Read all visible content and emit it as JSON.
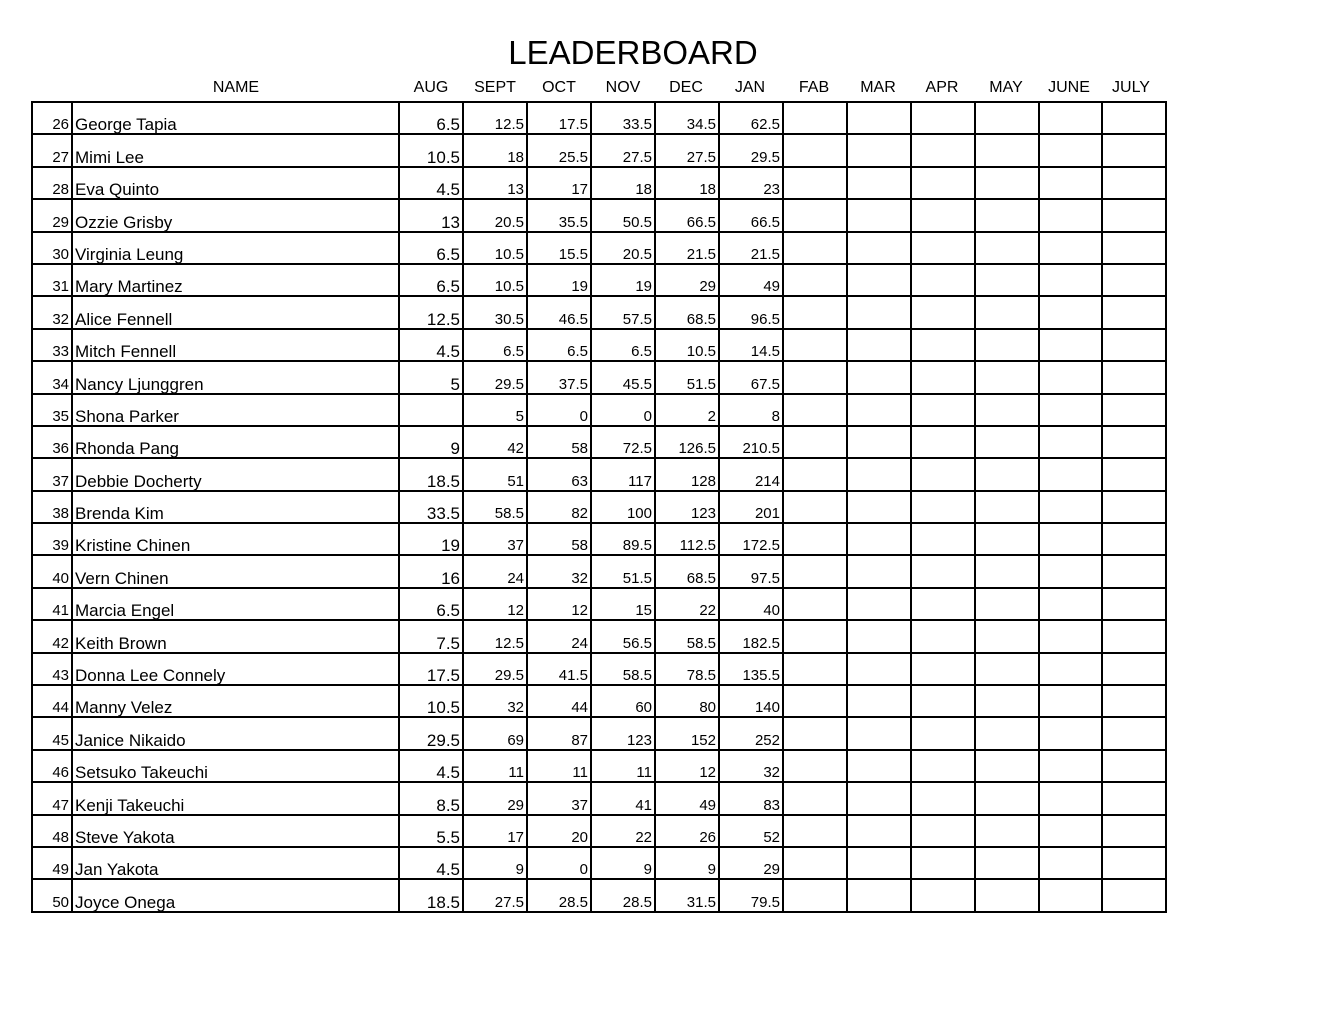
{
  "title": "LEADERBOARD",
  "headers": {
    "name": "NAME",
    "months": [
      "AUG",
      "SEPT",
      "OCT",
      "NOV",
      "DEC",
      "JAN",
      "FAB",
      "MAR",
      "APR",
      "MAY",
      "JUNE",
      "JULY"
    ]
  },
  "rows": [
    {
      "num": "26",
      "name": "George Tapia",
      "scores": [
        "6.5",
        "12.5",
        "17.5",
        "33.5",
        "34.5",
        "62.5"
      ]
    },
    {
      "num": "27",
      "name": "Mimi Lee",
      "scores": [
        "10.5",
        "18",
        "25.5",
        "27.5",
        "27.5",
        "29.5"
      ]
    },
    {
      "num": "28",
      "name": "Eva Quinto",
      "scores": [
        "4.5",
        "13",
        "17",
        "18",
        "18",
        "23"
      ]
    },
    {
      "num": "29",
      "name": "Ozzie Grisby",
      "scores": [
        "13",
        "20.5",
        "35.5",
        "50.5",
        "66.5",
        "66.5"
      ]
    },
    {
      "num": "30",
      "name": "Virginia Leung",
      "scores": [
        "6.5",
        "10.5",
        "15.5",
        "20.5",
        "21.5",
        "21.5"
      ]
    },
    {
      "num": "31",
      "name": "Mary Martinez",
      "scores": [
        "6.5",
        "10.5",
        "19",
        "19",
        "29",
        "49"
      ]
    },
    {
      "num": "32",
      "name": "Alice Fennell",
      "scores": [
        "12.5",
        "30.5",
        "46.5",
        "57.5",
        "68.5",
        "96.5"
      ]
    },
    {
      "num": "33",
      "name": "Mitch Fennell",
      "scores": [
        "4.5",
        "6.5",
        "6.5",
        "6.5",
        "10.5",
        "14.5"
      ]
    },
    {
      "num": "34",
      "name": "Nancy Ljunggren",
      "scores": [
        "5",
        "29.5",
        "37.5",
        "45.5",
        "51.5",
        "67.5"
      ]
    },
    {
      "num": "35",
      "name": "Shona Parker",
      "scores": [
        "",
        "5",
        "0",
        "0",
        "2",
        "8"
      ]
    },
    {
      "num": "36",
      "name": "Rhonda Pang",
      "scores": [
        "9",
        "42",
        "58",
        "72.5",
        "126.5",
        "210.5"
      ]
    },
    {
      "num": "37",
      "name": "Debbie Docherty",
      "scores": [
        "18.5",
        "51",
        "63",
        "117",
        "128",
        "214"
      ]
    },
    {
      "num": "38",
      "name": "Brenda Kim",
      "scores": [
        "33.5",
        "58.5",
        "82",
        "100",
        "123",
        "201"
      ]
    },
    {
      "num": "39",
      "name": "Kristine Chinen",
      "scores": [
        "19",
        "37",
        "58",
        "89.5",
        "112.5",
        "172.5"
      ]
    },
    {
      "num": "40",
      "name": "Vern Chinen",
      "scores": [
        "16",
        "24",
        "32",
        "51.5",
        "68.5",
        "97.5"
      ]
    },
    {
      "num": "41",
      "name": "Marcia Engel",
      "scores": [
        "6.5",
        "12",
        "12",
        "15",
        "22",
        "40"
      ]
    },
    {
      "num": "42",
      "name": "Keith Brown",
      "scores": [
        "7.5",
        "12.5",
        "24",
        "56.5",
        "58.5",
        "182.5"
      ]
    },
    {
      "num": "43",
      "name": "Donna Lee Connely",
      "scores": [
        "17.5",
        "29.5",
        "41.5",
        "58.5",
        "78.5",
        "135.5"
      ]
    },
    {
      "num": "44",
      "name": "Manny Velez",
      "scores": [
        "10.5",
        "32",
        "44",
        "60",
        "80",
        "140"
      ]
    },
    {
      "num": "45",
      "name": "Janice Nikaido",
      "scores": [
        "29.5",
        "69",
        "87",
        "123",
        "152",
        "252"
      ]
    },
    {
      "num": "46",
      "name": "Setsuko Takeuchi",
      "scores": [
        "4.5",
        "11",
        "11",
        "11",
        "12",
        "32"
      ]
    },
    {
      "num": "47",
      "name": "Kenji Takeuchi",
      "scores": [
        "8.5",
        "29",
        "37",
        "41",
        "49",
        "83"
      ]
    },
    {
      "num": "48",
      "name": "Steve Yakota",
      "scores": [
        "5.5",
        "17",
        "20",
        "22",
        "26",
        "52"
      ]
    },
    {
      "num": "49",
      "name": "Jan Yakota",
      "scores": [
        "4.5",
        "9",
        "0",
        "9",
        "9",
        "29"
      ]
    },
    {
      "num": "50",
      "name": "Joyce Onega",
      "scores": [
        "18.5",
        "27.5",
        "28.5",
        "28.5",
        "31.5",
        "79.5"
      ]
    }
  ]
}
